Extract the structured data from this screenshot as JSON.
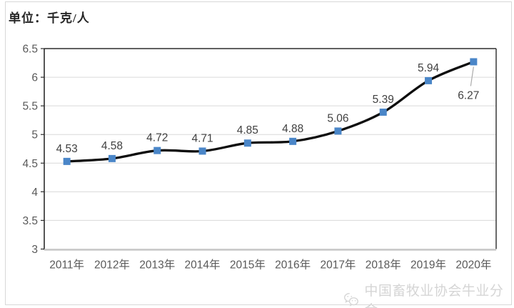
{
  "page": {
    "unit_label": "单位：千克/人"
  },
  "watermark": {
    "text": "中国畜牧业协会牛业分会",
    "icon": "wechat-logo-icon"
  },
  "chart_data": {
    "type": "line",
    "title": "",
    "unit_label": "单位：千克/人",
    "categories": [
      "2011年",
      "2012年",
      "2013年",
      "2014年",
      "2015年",
      "2016年",
      "2017年",
      "2018年",
      "2019年",
      "2020年"
    ],
    "values": [
      4.53,
      4.58,
      4.72,
      4.71,
      4.85,
      4.88,
      5.06,
      5.39,
      5.94,
      6.27
    ],
    "data_labels": [
      "4.53",
      "4.58",
      "4.72",
      "4.71",
      "4.85",
      "4.88",
      "5.06",
      "5.39",
      "5.94",
      "6.27"
    ],
    "ylim": [
      3,
      6.5
    ],
    "ytick_step": 0.5,
    "yticks": [
      "3",
      "3.5",
      "4",
      "4.5",
      "5",
      "5.5",
      "6",
      "6.5"
    ],
    "grid": true,
    "legend": "none",
    "smoothed_line": true,
    "marker_shape": "square",
    "label_position_overrides": {
      "9": "below"
    },
    "colors": {
      "line": "#0d0d0d",
      "marker": "#4a86c8",
      "gridline": "#d9d9d9",
      "axis_dark": "#2b2b2b",
      "axis_bottom": "#c9c9c9",
      "data_label": "#404040",
      "tick_label": "#595959",
      "leader_line": "#ababab"
    }
  }
}
